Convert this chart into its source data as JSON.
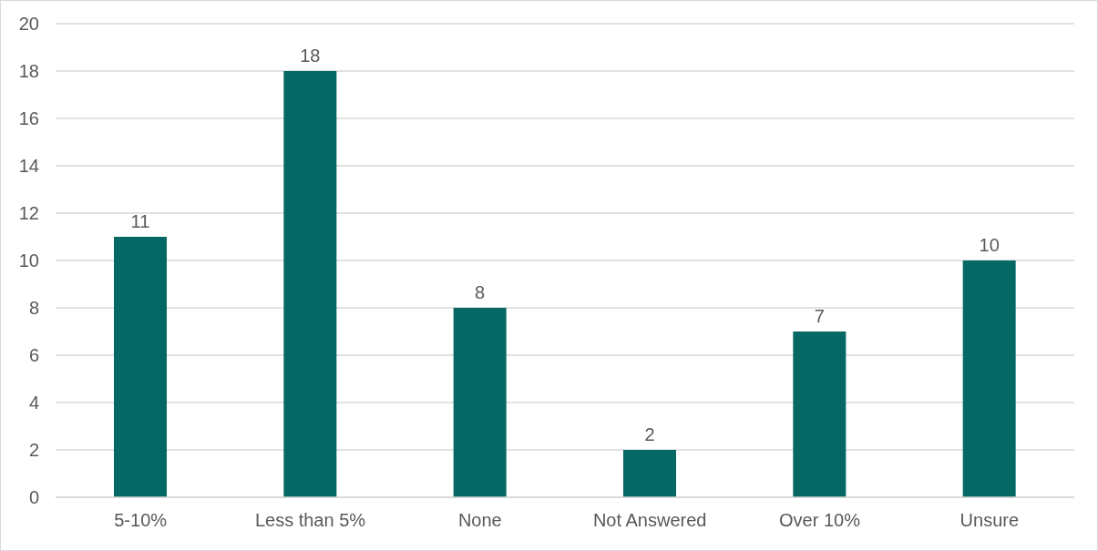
{
  "chart_data": {
    "type": "bar",
    "categories": [
      "5-10%",
      "Less than 5%",
      "None",
      "Not Answered",
      "Over 10%",
      "Unsure"
    ],
    "values": [
      11,
      18,
      8,
      2,
      7,
      10
    ],
    "color": "#066864",
    "ylim": [
      0,
      20
    ],
    "yticks": [
      0,
      2,
      4,
      6,
      8,
      10,
      12,
      14,
      16,
      18,
      20
    ],
    "grid": "y",
    "data_labels": true
  }
}
